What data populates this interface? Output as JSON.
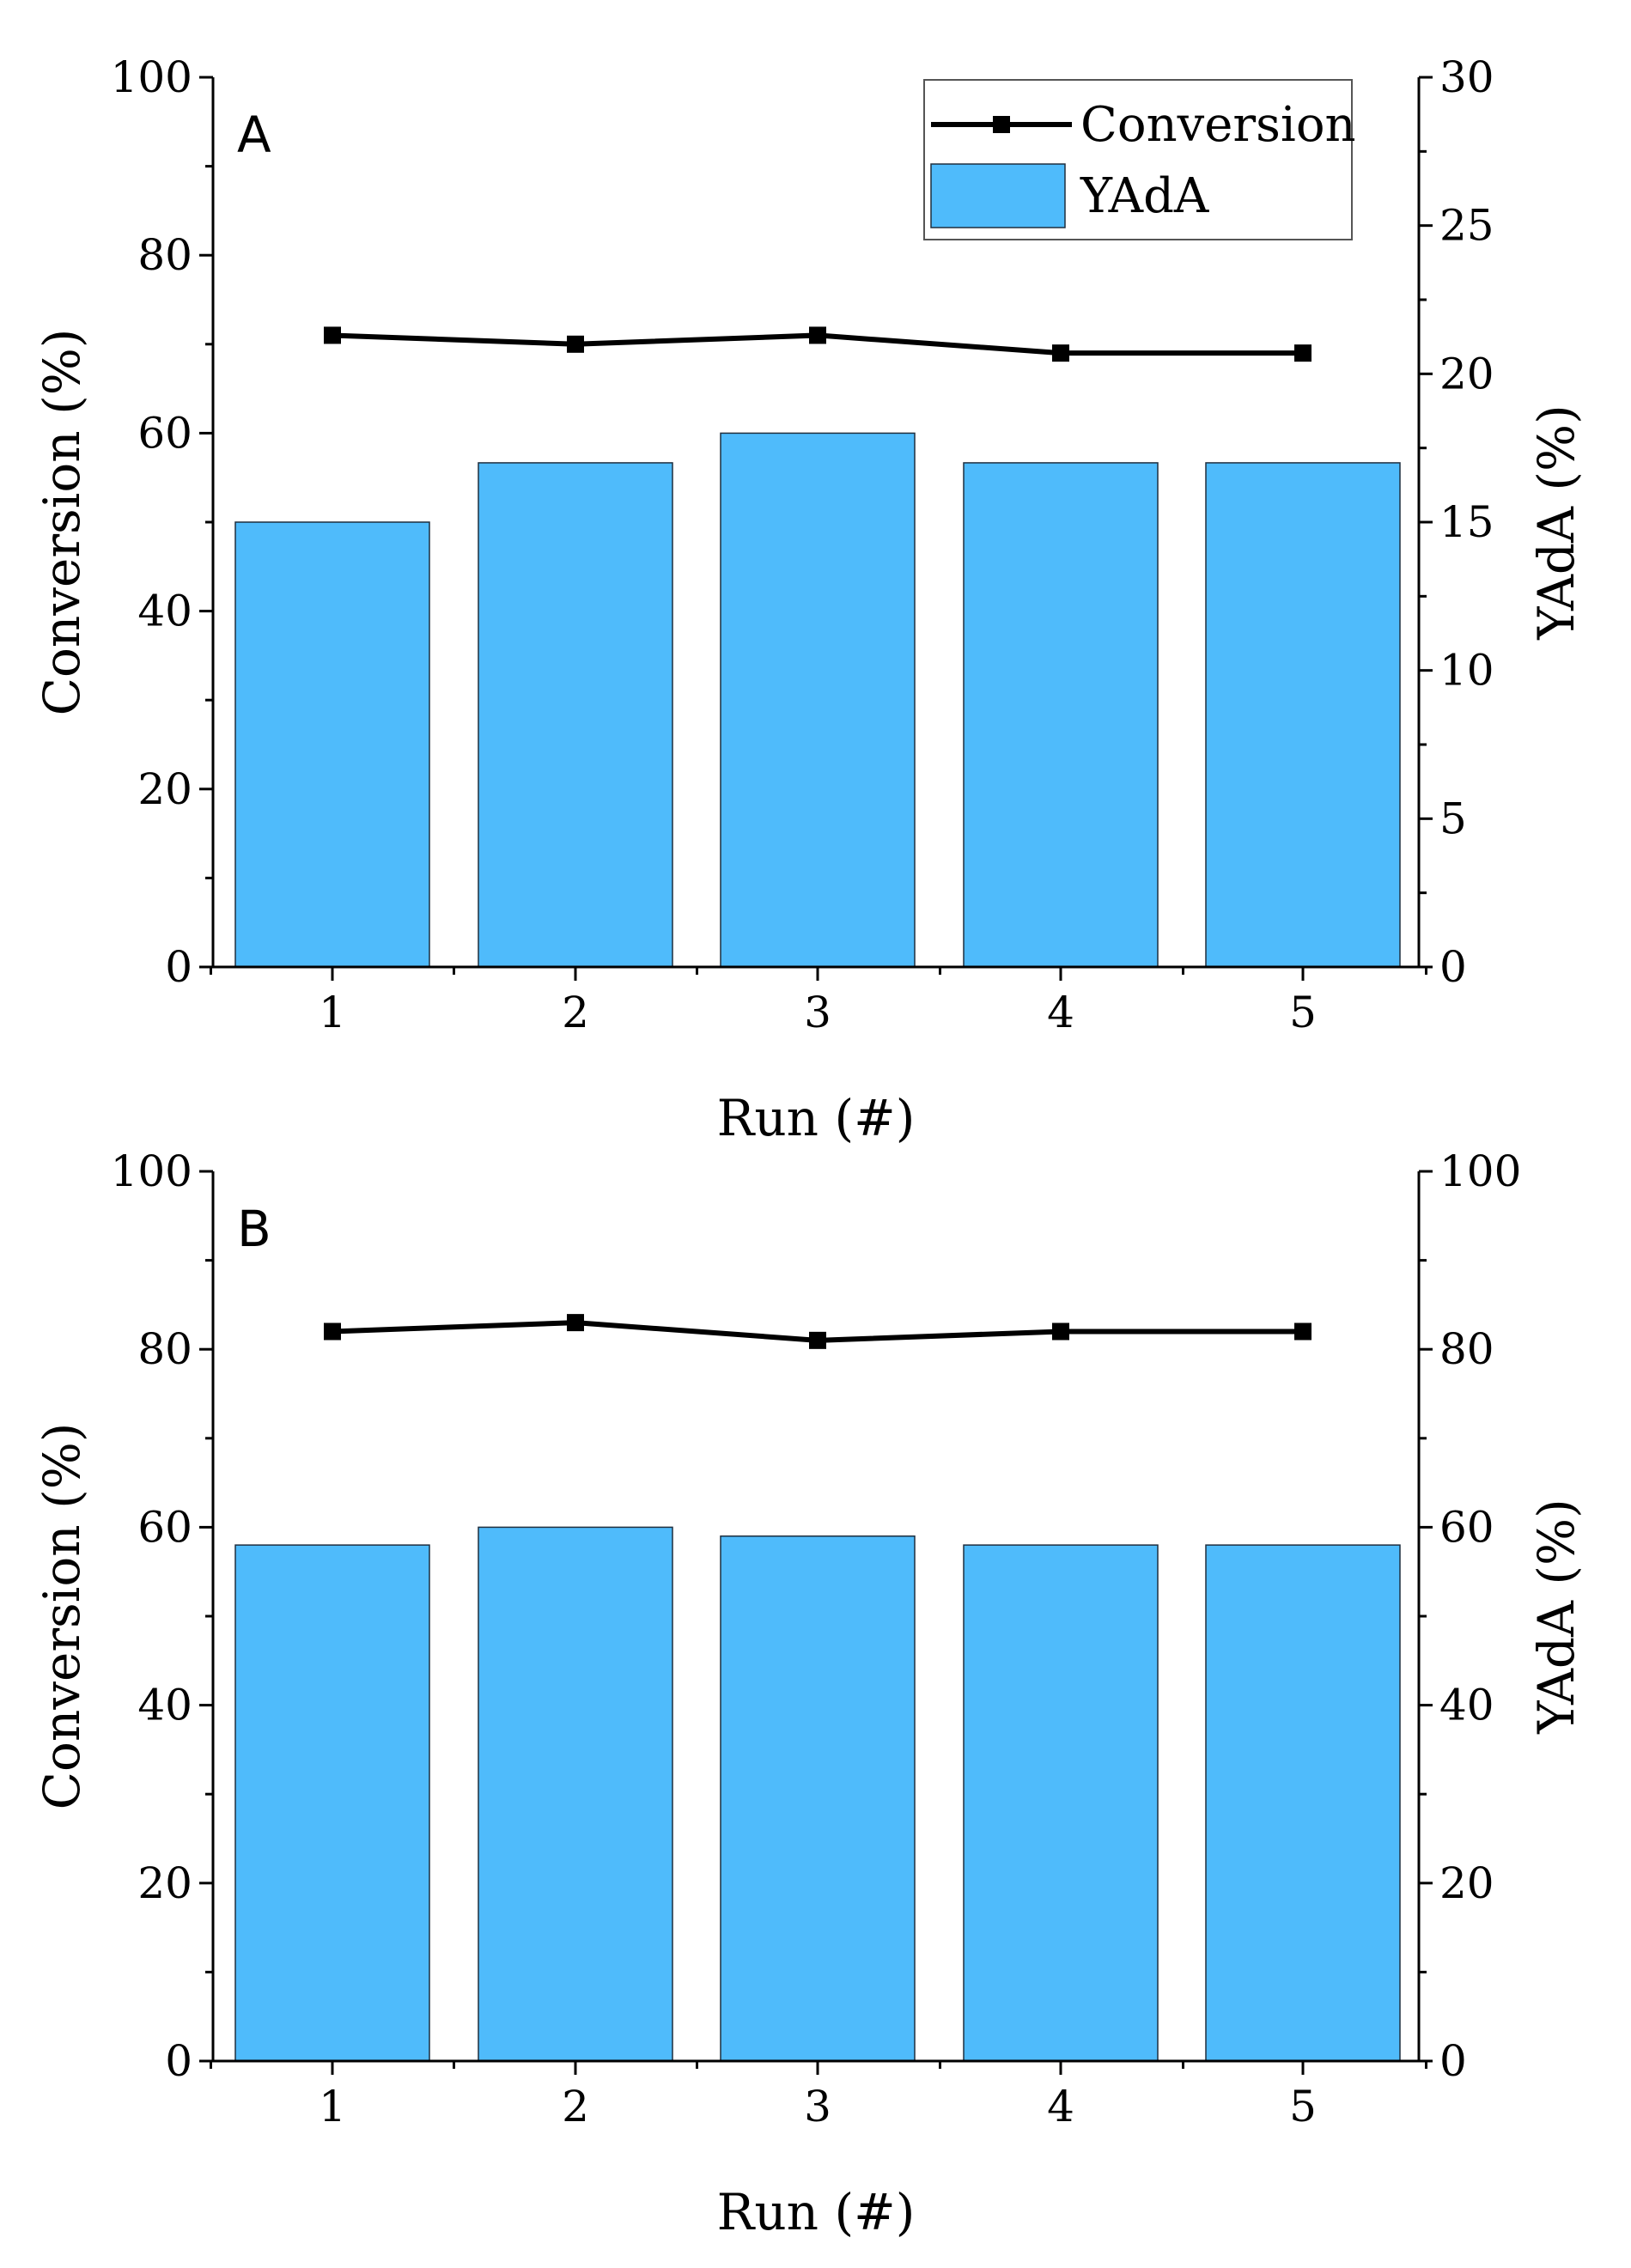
{
  "colors": {
    "bar_fill": "#4fbbfb",
    "bar_stroke": "#1f2f3f",
    "line": "#000000",
    "axis": "#000000"
  },
  "chart_data": [
    {
      "type": "bar",
      "panel_label": "A",
      "categories": [
        "1",
        "2",
        "3",
        "4",
        "5"
      ],
      "xlabel": "Run (#)",
      "ylabel_left": "Conversion (%)",
      "ylabel_right": "YAdA (%)",
      "ylim_left": [
        0,
        100
      ],
      "ylim_right": [
        0,
        30
      ],
      "left_ticks": [
        "0",
        "20",
        "40",
        "60",
        "80",
        "100"
      ],
      "right_ticks": [
        "0",
        "5",
        "10",
        "15",
        "20",
        "25",
        "30"
      ],
      "legend": {
        "placement": "top-right",
        "line_label": "Conversion",
        "bar_label": "YAdA"
      },
      "series": [
        {
          "name": "YAdA",
          "kind": "bar",
          "axis": "right",
          "values": [
            15.0,
            17.0,
            18.0,
            17.0,
            17.0
          ]
        },
        {
          "name": "Conversion",
          "kind": "line",
          "axis": "left",
          "values": [
            71,
            70,
            71,
            69,
            69
          ]
        }
      ]
    },
    {
      "type": "bar",
      "panel_label": "B",
      "categories": [
        "1",
        "2",
        "3",
        "4",
        "5"
      ],
      "xlabel": "Run (#)",
      "ylabel_left": "Conversion (%)",
      "ylabel_right": "YAdA (%)",
      "ylim_left": [
        0,
        100
      ],
      "ylim_right": [
        0,
        100
      ],
      "left_ticks": [
        "0",
        "20",
        "40",
        "60",
        "80",
        "100"
      ],
      "right_ticks": [
        "0",
        "20",
        "40",
        "60",
        "80",
        "100"
      ],
      "series": [
        {
          "name": "YAdA",
          "kind": "bar",
          "axis": "right",
          "values": [
            58,
            60,
            59,
            58,
            58
          ]
        },
        {
          "name": "Conversion",
          "kind": "line",
          "axis": "left",
          "values": [
            82,
            83,
            81,
            82,
            82
          ]
        }
      ]
    }
  ]
}
